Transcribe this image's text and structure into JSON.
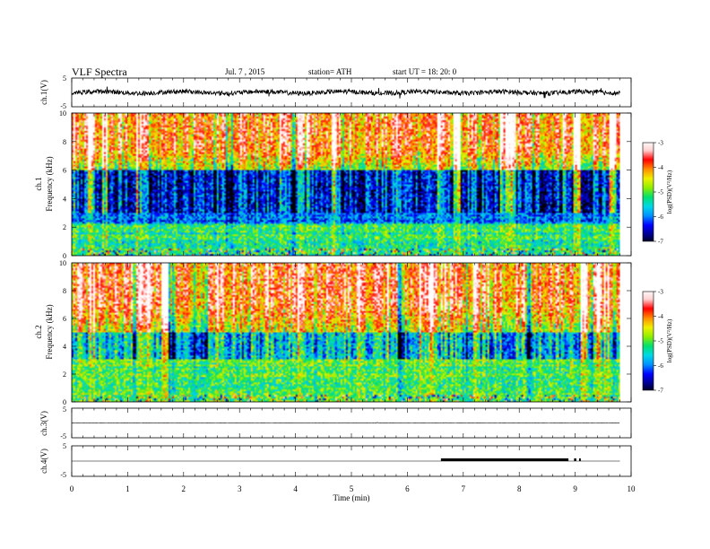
{
  "header": {
    "title": "VLF  Spectra",
    "date": "Jul.  7  , 2015",
    "station": "station= ATH",
    "start": "start  UT  =    18: 20: 0"
  },
  "colors": {
    "spectrum": [
      "#000000",
      "#00008b",
      "#0000ff",
      "#0090ff",
      "#00d8e8",
      "#00e070",
      "#90ee00",
      "#f0f000",
      "#ff8c00",
      "#ff0000",
      "#ffd0d0",
      "#ffffff"
    ]
  },
  "chart_data": [
    {
      "type": "line",
      "panel": "ch1-waveform",
      "ylabel": "ch.1(V)",
      "yticks": [
        "5",
        "-5"
      ],
      "ylim": [
        -5,
        5
      ],
      "xlim": [
        0,
        10
      ],
      "baseline": 0,
      "x_end": 9.8
    },
    {
      "type": "heatmap",
      "panel": "ch1-spectrogram",
      "ylabel_top": "ch.1",
      "ylabel": "Frequency  (kHz)",
      "xlim": [
        0,
        10
      ],
      "ylim": [
        0,
        10
      ],
      "yticks": [
        "0",
        "2",
        "4",
        "6",
        "8",
        "10"
      ],
      "x_end": 9.8,
      "colorbar": {
        "label": "log(PSD)(V²/Hz)",
        "ticks": [
          "-3",
          "-4",
          "-5",
          "-6",
          "-7"
        ],
        "range": [
          -7,
          -3
        ]
      }
    },
    {
      "type": "heatmap",
      "panel": "ch2-spectrogram",
      "ylabel_top": "ch.2",
      "ylabel": "Frequency  (kHz)",
      "xlim": [
        0,
        10
      ],
      "ylim": [
        0,
        10
      ],
      "yticks": [
        "0",
        "2",
        "4",
        "6",
        "8",
        "10"
      ],
      "x_end": 9.8,
      "colorbar": {
        "label": "log(PSD)(V²/Hz)",
        "ticks": [
          "-3",
          "-4",
          "-5",
          "-6",
          "-7"
        ],
        "range": [
          -7,
          -3
        ]
      }
    },
    {
      "type": "line",
      "panel": "ch3-waveform",
      "ylabel": "ch.3(V)",
      "yticks": [
        "5",
        "-5"
      ],
      "ylim": [
        -5,
        5
      ],
      "xlim": [
        0,
        10
      ],
      "baseline": 0,
      "x_end": 9.8
    },
    {
      "type": "line",
      "panel": "ch4-waveform",
      "ylabel": "ch.4(V)",
      "yticks": [
        "5",
        "-5"
      ],
      "ylim": [
        -5,
        5
      ],
      "xlim": [
        0,
        10
      ],
      "baseline": 0,
      "x_end": 9.8,
      "pulse_segments": [
        [
          6.6,
          8.88
        ],
        [
          8.98,
          9.02
        ],
        [
          9.07,
          9.1
        ]
      ]
    }
  ],
  "xaxis": {
    "label": "Time  (min)",
    "ticks": [
      "0",
      "1",
      "2",
      "3",
      "4",
      "5",
      "6",
      "7",
      "8",
      "9",
      "10"
    ],
    "range": [
      0,
      10
    ]
  }
}
